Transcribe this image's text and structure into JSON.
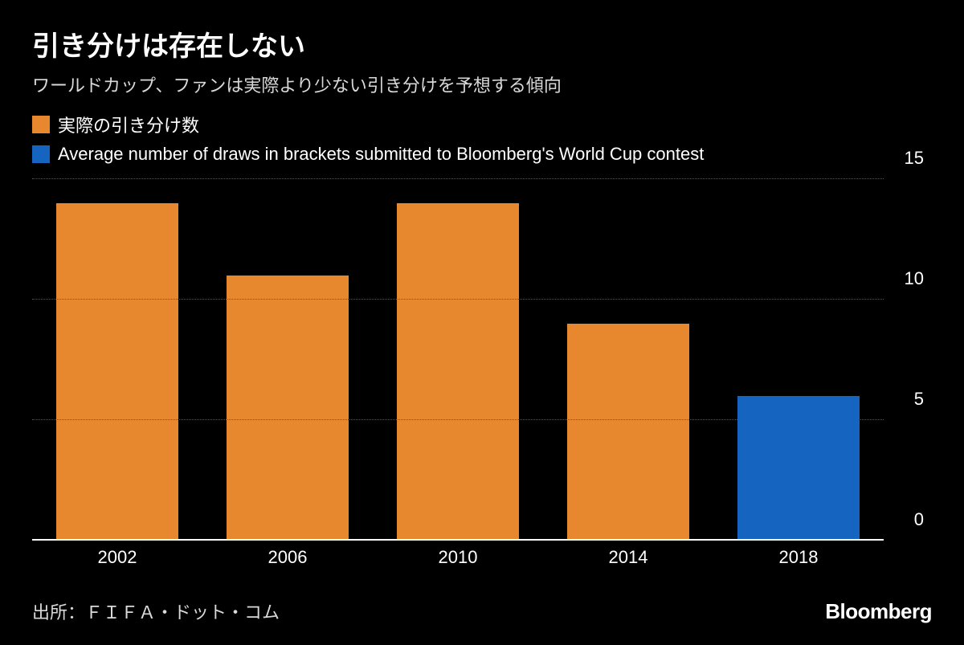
{
  "chart": {
    "type": "bar",
    "background_color": "#000000",
    "text_color": "#ffffff",
    "subtitle_color": "#d9d9d9",
    "title": "引き分けは存在しない",
    "title_fontsize": 34,
    "subtitle": "ワールドカップ、ファンは実際より少ない引き分けを予想する傾向",
    "subtitle_fontsize": 22,
    "legend": [
      {
        "label": "実際の引き分け数",
        "color": "#e8882e"
      },
      {
        "label": "Average number of draws in brackets submitted to Bloomberg's World Cup contest",
        "color": "#1565c0"
      }
    ],
    "categories": [
      "2002",
      "2006",
      "2010",
      "2014",
      "2018"
    ],
    "values": [
      14,
      11,
      14,
      9,
      6
    ],
    "bar_colors": [
      "#e8882e",
      "#e8882e",
      "#e8882e",
      "#e8882e",
      "#1565c0"
    ],
    "ylim": [
      0,
      15
    ],
    "yticks": [
      0,
      5,
      10,
      15
    ],
    "grid_color": "#555555",
    "baseline_color": "#ffffff",
    "tick_label_fontsize": 22,
    "bar_width": 0.72
  },
  "footer": {
    "source": "出所：ＦＩＦＡ・ドット・コム",
    "logo": "Bloomberg"
  }
}
